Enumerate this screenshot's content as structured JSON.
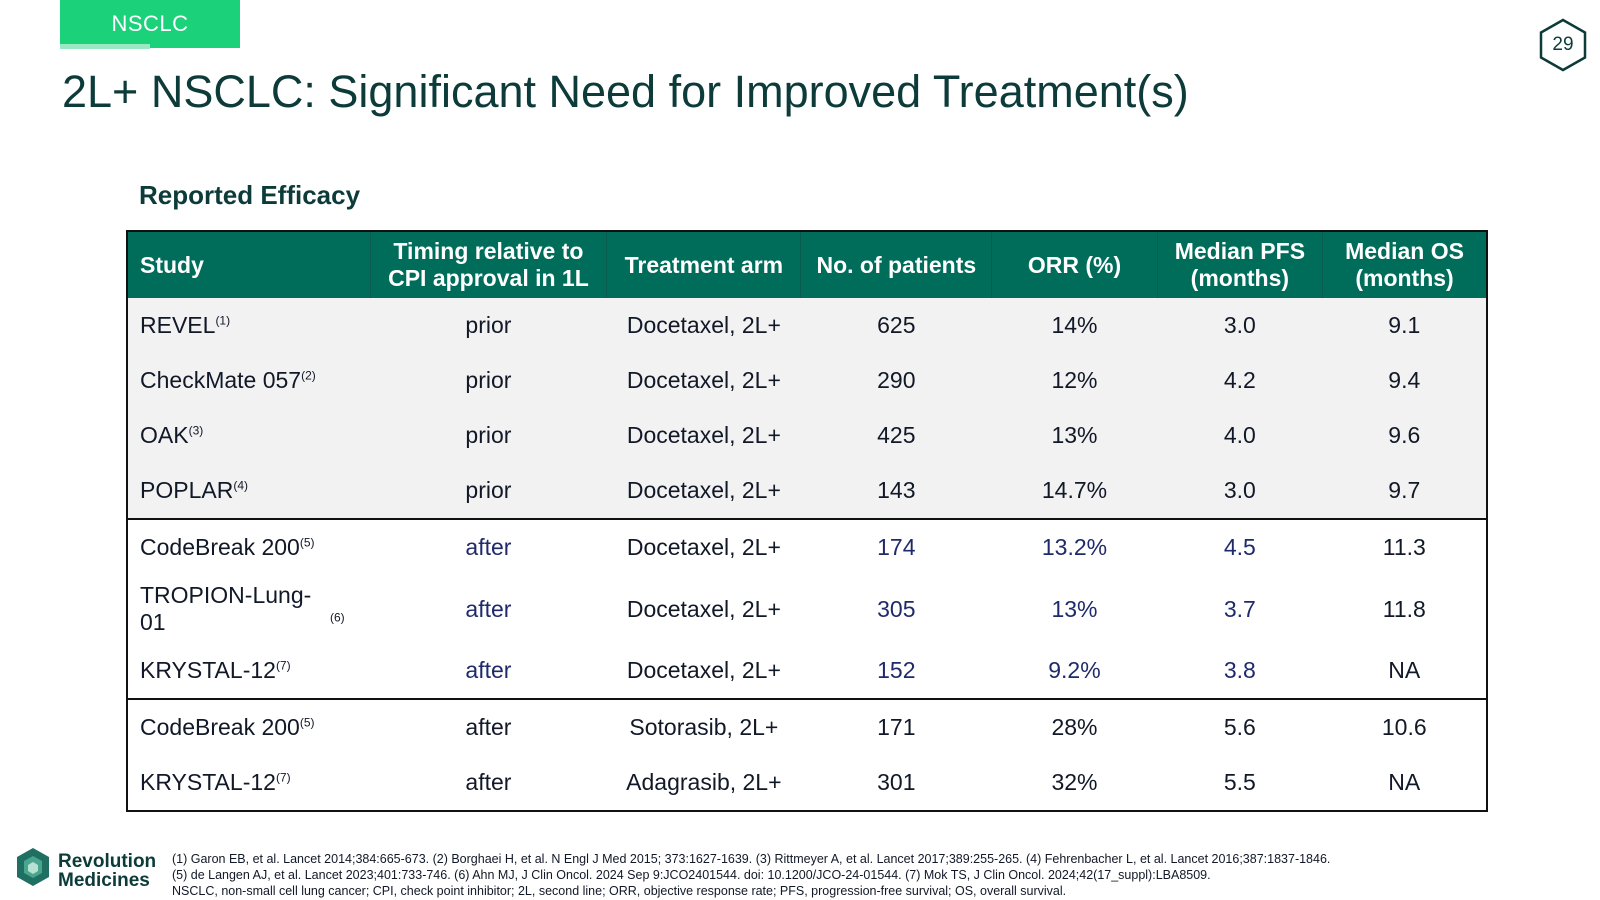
{
  "header": {
    "tag": "NSCLC",
    "title": "2L+ NSCLC: Significant Need for Improved Treatment(s)",
    "page_number": "29"
  },
  "section": {
    "subtitle": "Reported Efficacy"
  },
  "table": {
    "columns": [
      "Study",
      "Timing relative to CPI approval in 1L",
      "Treatment arm",
      "No. of patients",
      "ORR (%)",
      "Median PFS (months)",
      "Median OS (months)"
    ],
    "rows": [
      {
        "study": "REVEL",
        "ref": "(1)",
        "timing": "prior",
        "arm": "Docetaxel, 2L+",
        "patients": "625",
        "orr": "14%",
        "pfs": "3.0",
        "os": "9.1"
      },
      {
        "study": "CheckMate 057",
        "ref": "(2)",
        "timing": "prior",
        "arm": "Docetaxel, 2L+",
        "patients": "290",
        "orr": "12%",
        "pfs": "4.2",
        "os": "9.4"
      },
      {
        "study": "OAK",
        "ref": "(3)",
        "timing": "prior",
        "arm": "Docetaxel, 2L+",
        "patients": "425",
        "orr": "13%",
        "pfs": "4.0",
        "os": "9.6"
      },
      {
        "study": "POPLAR",
        "ref": "(4)",
        "timing": "prior",
        "arm": "Docetaxel, 2L+",
        "patients": "143",
        "orr": "14.7%",
        "pfs": "3.0",
        "os": "9.7"
      },
      {
        "study": "CodeBreak 200",
        "ref": "(5)",
        "timing": "after",
        "arm": "Docetaxel, 2L+",
        "patients": "174",
        "orr": "13.2%",
        "pfs": "4.5",
        "os": "11.3"
      },
      {
        "study": "TROPION-Lung-01",
        "ref": "(6)",
        "timing": "after",
        "arm": "Docetaxel, 2L+",
        "patients": "305",
        "orr": "13%",
        "pfs": "3.7",
        "os": "11.8"
      },
      {
        "study": "KRYSTAL-12",
        "ref": "(7)",
        "timing": "after",
        "arm": "Docetaxel, 2L+",
        "patients": "152",
        "orr": "9.2%",
        "pfs": "3.8",
        "os": "NA"
      },
      {
        "study": "CodeBreak 200",
        "ref": "(5)",
        "timing": "after",
        "arm": "Sotorasib, 2L+",
        "patients": "171",
        "orr": "28%",
        "pfs": "5.6",
        "os": "10.6"
      },
      {
        "study": "KRYSTAL-12",
        "ref": "(7)",
        "timing": "after",
        "arm": "Adagrasib, 2L+",
        "patients": "301",
        "orr": "32%",
        "pfs": "5.5",
        "os": "NA"
      }
    ]
  },
  "logo": {
    "line1": "Revolution",
    "line2": "Medicines"
  },
  "footnotes": [
    "(1) Garon EB, et al. Lancet 2014;384:665-673. (2) Borghaei H, et al. N Engl J Med 2015; 373:1627-1639. (3) Rittmeyer A, et al. Lancet 2017;389:255-265. (4) Fehrenbacher L, et al. Lancet 2016;387:1837-1846.",
    "(5) de Langen AJ, et al. Lancet 2023;401:733-746. (6) Ahn MJ, J Clin Oncol. 2024 Sep 9:JCO2401544. doi: 10.1200/JCO-24-01544. (7) Mok TS, J Clin Oncol. 2024;42(17_suppl):LBA8509.",
    "NSCLC, non-small cell lung cancer; CPI, check point inhibitor; 2L, second line; ORR, objective response rate; PFS, progression-free survival; OS, overall survival."
  ]
}
